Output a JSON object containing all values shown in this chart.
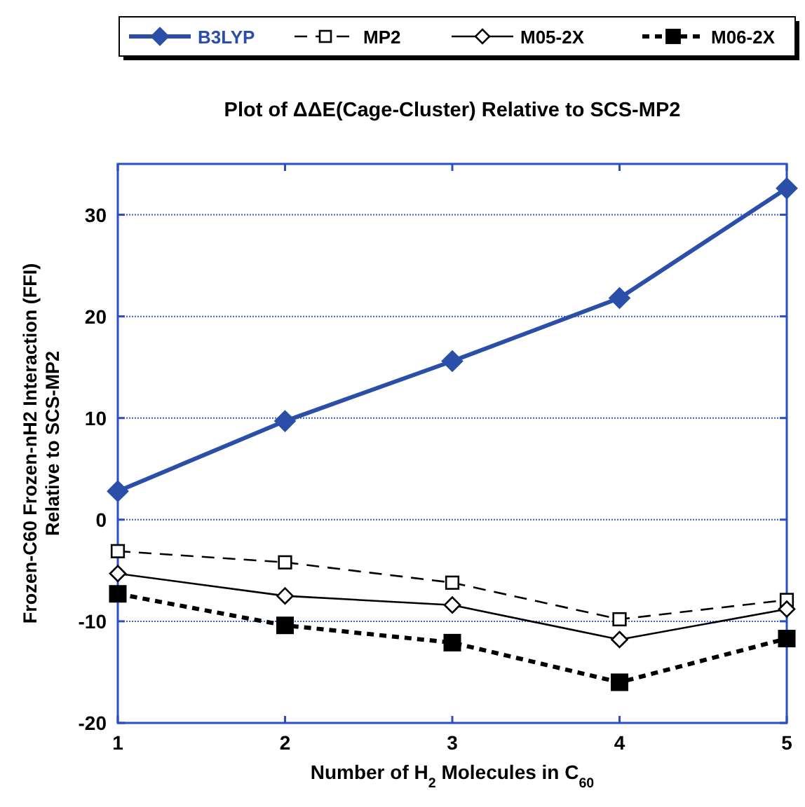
{
  "chart_data": {
    "type": "line",
    "title": "Plot of ΔΔE(Cage-Cluster) Relative to SCS-MP2",
    "xlabel": "Number of H$_{2}$ Molecules in C$_{60}$",
    "ylabel": "Frozen-C60 Frozen-nH2 Interaction (FFI)\nRelative to SCS-MP2",
    "x": [
      1,
      2,
      3,
      4,
      5
    ],
    "xlim": [
      1,
      5
    ],
    "xticks": [
      1,
      2,
      3,
      4,
      5
    ],
    "ylim": [
      -20,
      35
    ],
    "yticks": [
      -20,
      -10,
      0,
      10,
      20,
      30
    ],
    "grid": "y",
    "legend": "top",
    "series": [
      {
        "name": "B3LYP",
        "color": "#2b4fa8",
        "values": [
          2.8,
          9.7,
          15.6,
          21.8,
          32.6
        ],
        "marker": "diamond",
        "line_style": "solid"
      },
      {
        "name": "MP2",
        "color": "#000000",
        "values": [
          -3.1,
          -4.2,
          -6.2,
          -9.8,
          -7.9
        ],
        "marker": "square",
        "line_style": "dashed"
      },
      {
        "name": "M05-2X",
        "color": "#000000",
        "values": [
          -5.3,
          -7.5,
          -8.4,
          -11.8,
          -8.8
        ],
        "marker": "diamond",
        "line_style": "solid"
      },
      {
        "name": "M06-2X",
        "color": "#000000",
        "values": [
          -7.3,
          -10.4,
          -12.1,
          -16.0,
          -11.7
        ],
        "marker": "square",
        "line_style": "dashed"
      }
    ]
  }
}
